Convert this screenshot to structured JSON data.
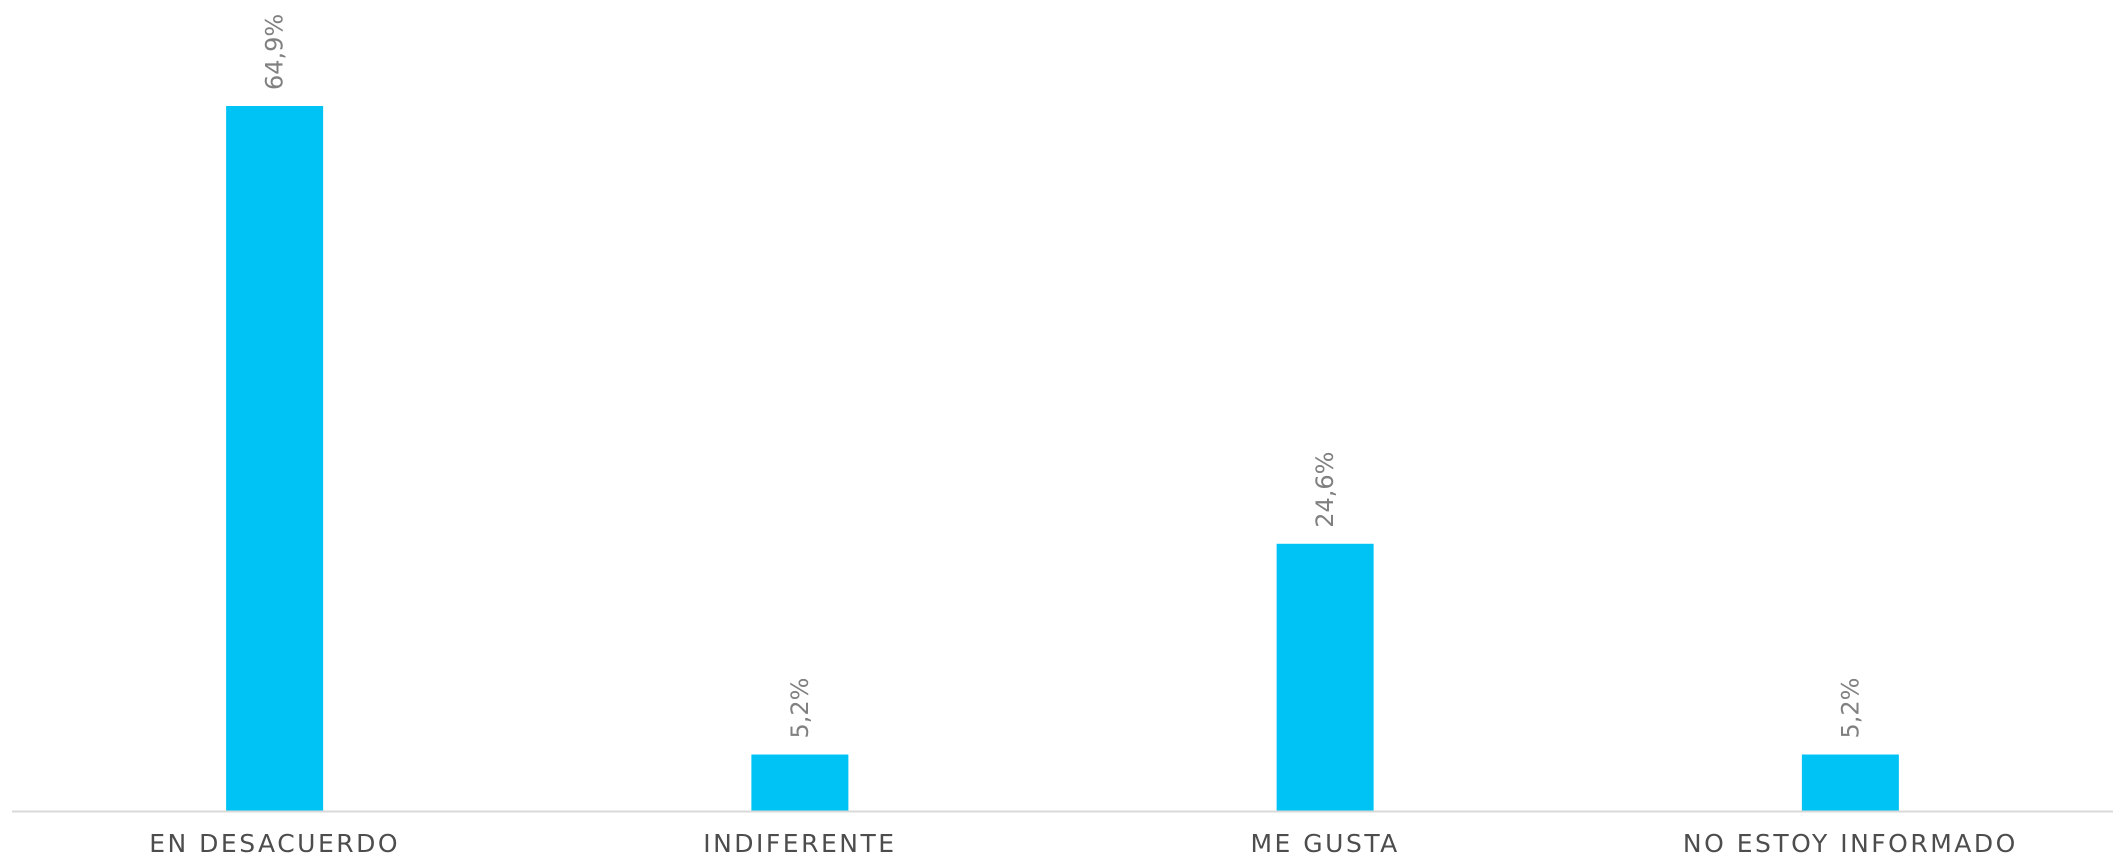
{
  "chart_data": {
    "type": "bar",
    "categories": [
      "EN DESACUERDO",
      "INDIFERENTE",
      "ME GUSTA",
      "NO ESTOY INFORMADO"
    ],
    "values": [
      64.9,
      5.2,
      24.6,
      5.2
    ],
    "data_labels": [
      "64,9%",
      "5,2%",
      "24,6%",
      "5,2%"
    ],
    "title": "",
    "xlabel": "",
    "ylabel": "",
    "ylim": [
      0,
      64.9
    ],
    "grid": false,
    "legend": "none",
    "bar_color": "#00C3F5",
    "axis_color": "#D9D9D9",
    "label_color": "#808080",
    "category_color": "#4D4D4D"
  }
}
